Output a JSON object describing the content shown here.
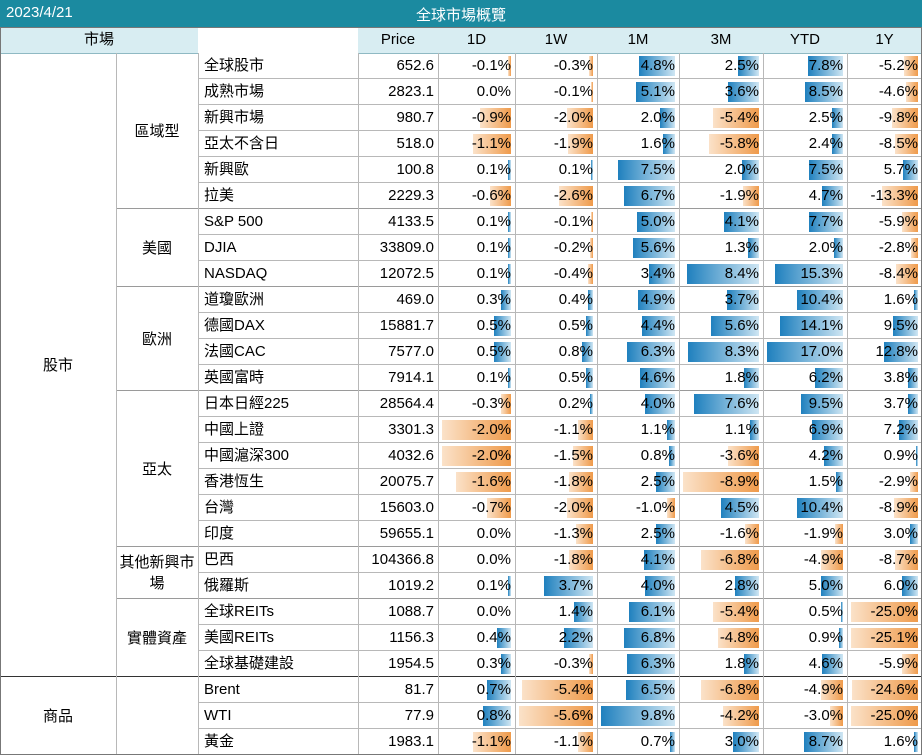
{
  "header": {
    "date": "2023/4/21",
    "title": "全球市場概覽"
  },
  "columns": [
    "市場",
    "Price",
    "1D",
    "1W",
    "1M",
    "3M",
    "YTD",
    "1Y"
  ],
  "sections": [
    {
      "label": "股市",
      "groups": [
        {
          "label": "區域型",
          "rows": [
            {
              "name": "全球股市",
              "price": "652.6",
              "vals": [
                "-0.1%",
                "-0.3%",
                "4.8%",
                "2.5%",
                "7.8%",
                "-5.2%"
              ]
            },
            {
              "name": "成熟市場",
              "price": "2823.1",
              "vals": [
                "0.0%",
                "-0.1%",
                "5.1%",
                "3.6%",
                "8.5%",
                "-4.6%"
              ]
            },
            {
              "name": "新興市場",
              "price": "980.7",
              "vals": [
                "-0.9%",
                "-2.0%",
                "2.0%",
                "-5.4%",
                "2.5%",
                "-9.8%"
              ]
            },
            {
              "name": "亞太不含日",
              "price": "518.0",
              "vals": [
                "-1.1%",
                "-1.9%",
                "1.6%",
                "-5.8%",
                "2.4%",
                "-8.5%"
              ]
            },
            {
              "name": "新興歐",
              "price": "100.8",
              "vals": [
                "0.1%",
                "0.1%",
                "7.5%",
                "2.0%",
                "7.5%",
                "5.7%"
              ]
            },
            {
              "name": "拉美",
              "price": "2229.3",
              "vals": [
                "-0.6%",
                "-2.6%",
                "6.7%",
                "-1.9%",
                "4.7%",
                "-13.3%"
              ]
            }
          ]
        },
        {
          "label": "美國",
          "rows": [
            {
              "name": "S&P 500",
              "price": "4133.5",
              "vals": [
                "0.1%",
                "-0.1%",
                "5.0%",
                "4.1%",
                "7.7%",
                "-5.9%"
              ]
            },
            {
              "name": "DJIA",
              "price": "33809.0",
              "vals": [
                "0.1%",
                "-0.2%",
                "5.6%",
                "1.3%",
                "2.0%",
                "-2.8%"
              ]
            },
            {
              "name": "NASDAQ",
              "price": "12072.5",
              "vals": [
                "0.1%",
                "-0.4%",
                "3.4%",
                "8.4%",
                "15.3%",
                "-8.4%"
              ]
            }
          ]
        },
        {
          "label": "歐洲",
          "rows": [
            {
              "name": "道瓊歐洲",
              "price": "469.0",
              "vals": [
                "0.3%",
                "0.4%",
                "4.9%",
                "3.7%",
                "10.4%",
                "1.6%"
              ]
            },
            {
              "name": "德國DAX",
              "price": "15881.7",
              "vals": [
                "0.5%",
                "0.5%",
                "4.4%",
                "5.6%",
                "14.1%",
                "9.5%"
              ]
            },
            {
              "name": "法國CAC",
              "price": "7577.0",
              "vals": [
                "0.5%",
                "0.8%",
                "6.3%",
                "8.3%",
                "17.0%",
                "12.8%"
              ]
            },
            {
              "name": "英國富時",
              "price": "7914.1",
              "vals": [
                "0.1%",
                "0.5%",
                "4.6%",
                "1.8%",
                "6.2%",
                "3.8%"
              ]
            }
          ]
        },
        {
          "label": "亞太",
          "rows": [
            {
              "name": "日本日經225",
              "price": "28564.4",
              "vals": [
                "-0.3%",
                "0.2%",
                "4.0%",
                "7.6%",
                "9.5%",
                "3.7%"
              ]
            },
            {
              "name": "中國上證",
              "price": "3301.3",
              "vals": [
                "-2.0%",
                "-1.1%",
                "1.1%",
                "1.1%",
                "6.9%",
                "7.2%"
              ]
            },
            {
              "name": "中國滬深300",
              "price": "4032.6",
              "vals": [
                "-2.0%",
                "-1.5%",
                "0.8%",
                "-3.6%",
                "4.2%",
                "0.9%"
              ]
            },
            {
              "name": "香港恆生",
              "price": "20075.7",
              "vals": [
                "-1.6%",
                "-1.8%",
                "2.5%",
                "-8.9%",
                "1.5%",
                "-2.9%"
              ]
            },
            {
              "name": "台灣",
              "price": "15603.0",
              "vals": [
                "-0.7%",
                "-2.0%",
                "-1.0%",
                "4.5%",
                "10.4%",
                "-8.9%"
              ]
            },
            {
              "name": "印度",
              "price": "59655.1",
              "vals": [
                "0.0%",
                "-1.3%",
                "2.5%",
                "-1.6%",
                "-1.9%",
                "3.0%"
              ]
            }
          ]
        },
        {
          "label": "其他新興市場",
          "rows": [
            {
              "name": "巴西",
              "price": "104366.8",
              "vals": [
                "0.0%",
                "-1.8%",
                "4.1%",
                "-6.8%",
                "-4.9%",
                "-8.7%"
              ]
            },
            {
              "name": "俄羅斯",
              "price": "1019.2",
              "vals": [
                "0.1%",
                "3.7%",
                "4.0%",
                "2.8%",
                "5.0%",
                "6.0%"
              ]
            }
          ]
        },
        {
          "label": "實體資產",
          "rows": [
            {
              "name": "全球REITs",
              "price": "1088.7",
              "vals": [
                "0.0%",
                "1.4%",
                "6.1%",
                "-5.4%",
                "0.5%",
                "-25.0%"
              ]
            },
            {
              "name": "美國REITs",
              "price": "1156.3",
              "vals": [
                "0.4%",
                "2.2%",
                "6.8%",
                "-4.8%",
                "0.9%",
                "-25.1%"
              ]
            },
            {
              "name": "全球基礎建設",
              "price": "1954.5",
              "vals": [
                "0.3%",
                "-0.3%",
                "6.3%",
                "1.8%",
                "4.6%",
                "-5.9%"
              ]
            }
          ]
        }
      ]
    },
    {
      "label": "商品",
      "groups": [
        {
          "label": "",
          "rows": [
            {
              "name": "Brent",
              "price": "81.7",
              "vals": [
                "0.7%",
                "-5.4%",
                "6.5%",
                "-6.8%",
                "-4.9%",
                "-24.6%"
              ]
            },
            {
              "name": "WTI",
              "price": "77.9",
              "vals": [
                "0.8%",
                "-5.6%",
                "9.8%",
                "-4.2%",
                "-3.0%",
                "-25.0%"
              ]
            },
            {
              "name": "黃金",
              "price": "1983.1",
              "vals": [
                "-1.1%",
                "-1.1%",
                "0.7%",
                "3.0%",
                "8.7%",
                "1.6%"
              ]
            }
          ]
        }
      ]
    }
  ],
  "colors": {
    "title_bg": "#1b8aa0",
    "header_bg": "#d8edf2",
    "positive_bar": "#1f80be",
    "negative_bar": "#ef9a4a"
  }
}
